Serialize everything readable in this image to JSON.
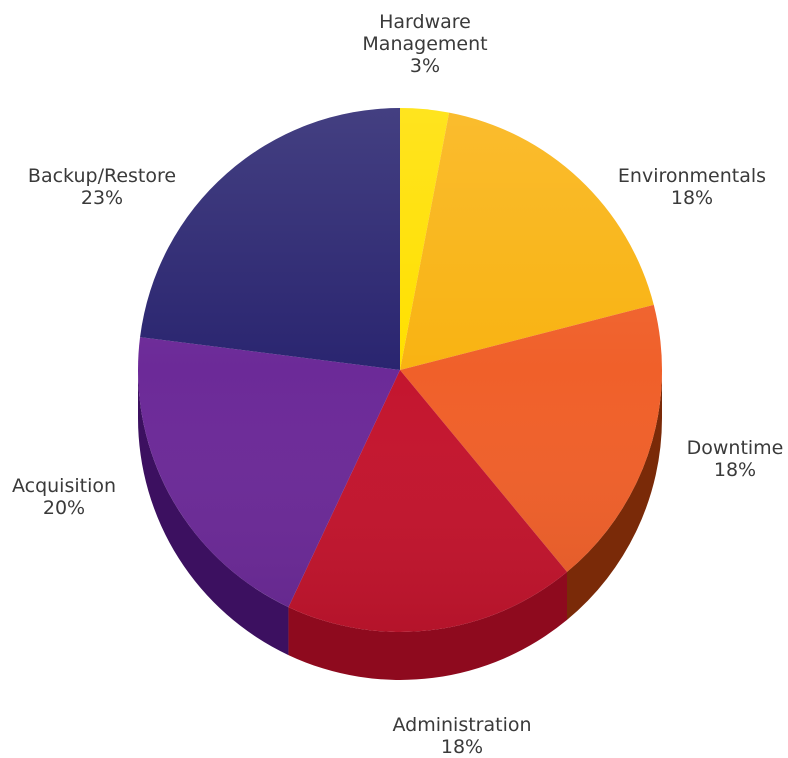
{
  "chart_data": {
    "type": "pie",
    "title": "",
    "slices": [
      {
        "label_lines": [
          "Hardware",
          "Management"
        ],
        "value": 3,
        "value_text": "3%",
        "color": "#FFE000",
        "color_dark": "#C8A800"
      },
      {
        "label_lines": [
          "Environmentals"
        ],
        "value": 18,
        "value_text": "18%",
        "color": "#F9B312",
        "color_dark": "#B8790A"
      },
      {
        "label_lines": [
          "Downtime"
        ],
        "value": 18,
        "value_text": "18%",
        "color": "#F0602A",
        "color_dark": "#7A2A08"
      },
      {
        "label_lines": [
          "Administration"
        ],
        "value": 18,
        "value_text": "18%",
        "color": "#C4152E",
        "color_dark": "#8E0A1E"
      },
      {
        "label_lines": [
          "Acquisition"
        ],
        "value": 20,
        "value_text": "20%",
        "color": "#6C2A98",
        "color_dark": "#3C1060"
      },
      {
        "label_lines": [
          "Backup/Restore"
        ],
        "value": 23,
        "value_text": "23%",
        "color": "#2A2570",
        "color_dark": "#161340"
      }
    ],
    "style": "3d-pie"
  }
}
